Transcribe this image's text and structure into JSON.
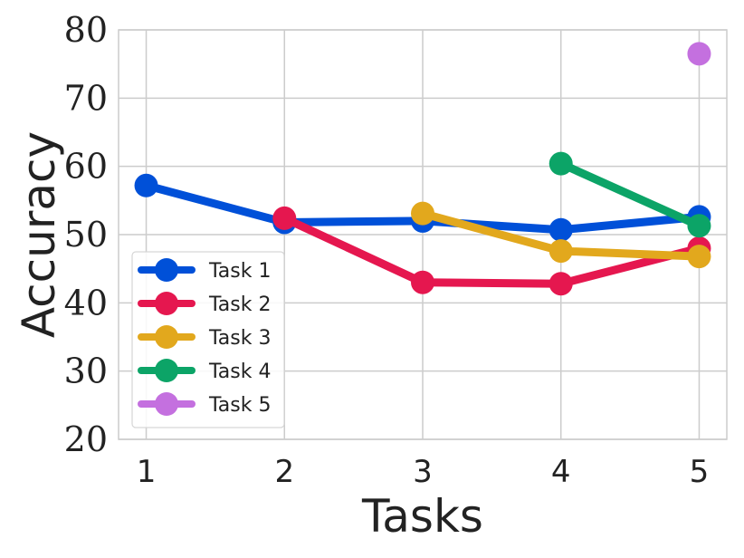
{
  "chart_data": {
    "type": "line",
    "title": "",
    "xlabel": "Tasks",
    "ylabel": "Accuracy",
    "x": [
      1,
      2,
      3,
      4,
      5
    ],
    "x_ticks": [
      "1",
      "2",
      "3",
      "4",
      "5"
    ],
    "y_ticks": [
      "20",
      "30",
      "40",
      "50",
      "60",
      "70",
      "80"
    ],
    "ylim": [
      20,
      80
    ],
    "xlim": [
      0.8,
      5.2
    ],
    "grid": true,
    "legend_position": "lower-left",
    "series": [
      {
        "name": "Task 1",
        "color": "#0050d8",
        "x": [
          1,
          2,
          3,
          4,
          5
        ],
        "values": [
          57.2,
          51.8,
          52.0,
          50.7,
          52.6
        ]
      },
      {
        "name": "Task 2",
        "color": "#e5174f",
        "x": [
          2,
          3,
          4,
          5
        ],
        "values": [
          52.4,
          43.0,
          42.8,
          48.0
        ]
      },
      {
        "name": "Task 3",
        "color": "#e2a81d",
        "x": [
          3,
          4,
          5
        ],
        "values": [
          53.1,
          47.6,
          46.8
        ]
      },
      {
        "name": "Task 4",
        "color": "#0ca467",
        "x": [
          4,
          5
        ],
        "values": [
          60.4,
          51.3
        ]
      },
      {
        "name": "Task 5",
        "color": "#c470df",
        "x": [
          5
        ],
        "values": [
          76.5
        ]
      }
    ]
  }
}
